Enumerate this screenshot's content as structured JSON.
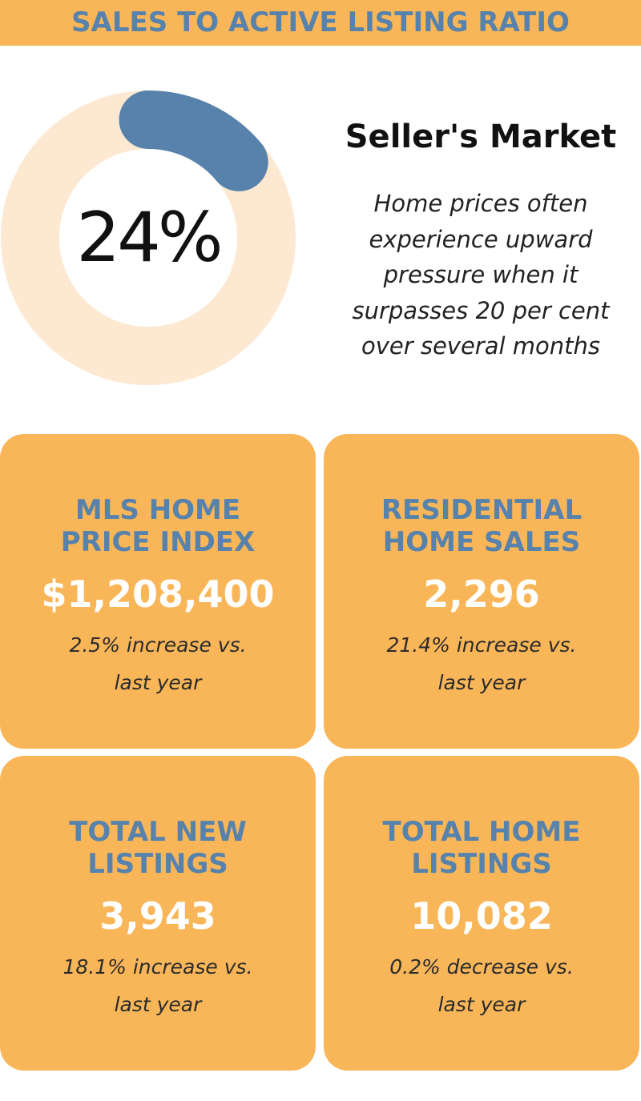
{
  "header": {
    "title": "SALES TO ACTIVE LISTING RATIO"
  },
  "ratio": {
    "value_text": "24%",
    "fraction": 0.24,
    "ring_color": "#fde9d2",
    "fill_color": "#5782ab"
  },
  "market": {
    "title": "Seller's Market",
    "description": "Home prices often experience upward pressure when it surpasses 20 per cent over several months",
    "description_lines": [
      "Home prices often",
      "experience upward",
      "pressure when it",
      "surpasses 20 per cent",
      "over several months"
    ]
  },
  "cards": [
    {
      "title_lines": [
        "MLS HOME",
        "PRICE INDEX"
      ],
      "value": "$1,208,400",
      "note_lines": [
        "2.5% increase vs.",
        "last year"
      ]
    },
    {
      "title_lines": [
        "RESIDENTIAL",
        "HOME SALES"
      ],
      "value": "2,296",
      "note_lines": [
        "21.4% increase vs.",
        "last year"
      ]
    },
    {
      "title_lines": [
        "TOTAL NEW",
        "LISTINGS"
      ],
      "value": "3,943",
      "note_lines": [
        "18.1% increase vs.",
        "last year"
      ]
    },
    {
      "title_lines": [
        "TOTAL HOME",
        "LISTINGS"
      ],
      "value": "10,082",
      "note_lines": [
        "0.2% decrease vs.",
        "last year"
      ]
    }
  ],
  "colors": {
    "accent_orange": "#f9b659",
    "heading_blue": "#5782ab",
    "value_white": "#ffffff"
  }
}
